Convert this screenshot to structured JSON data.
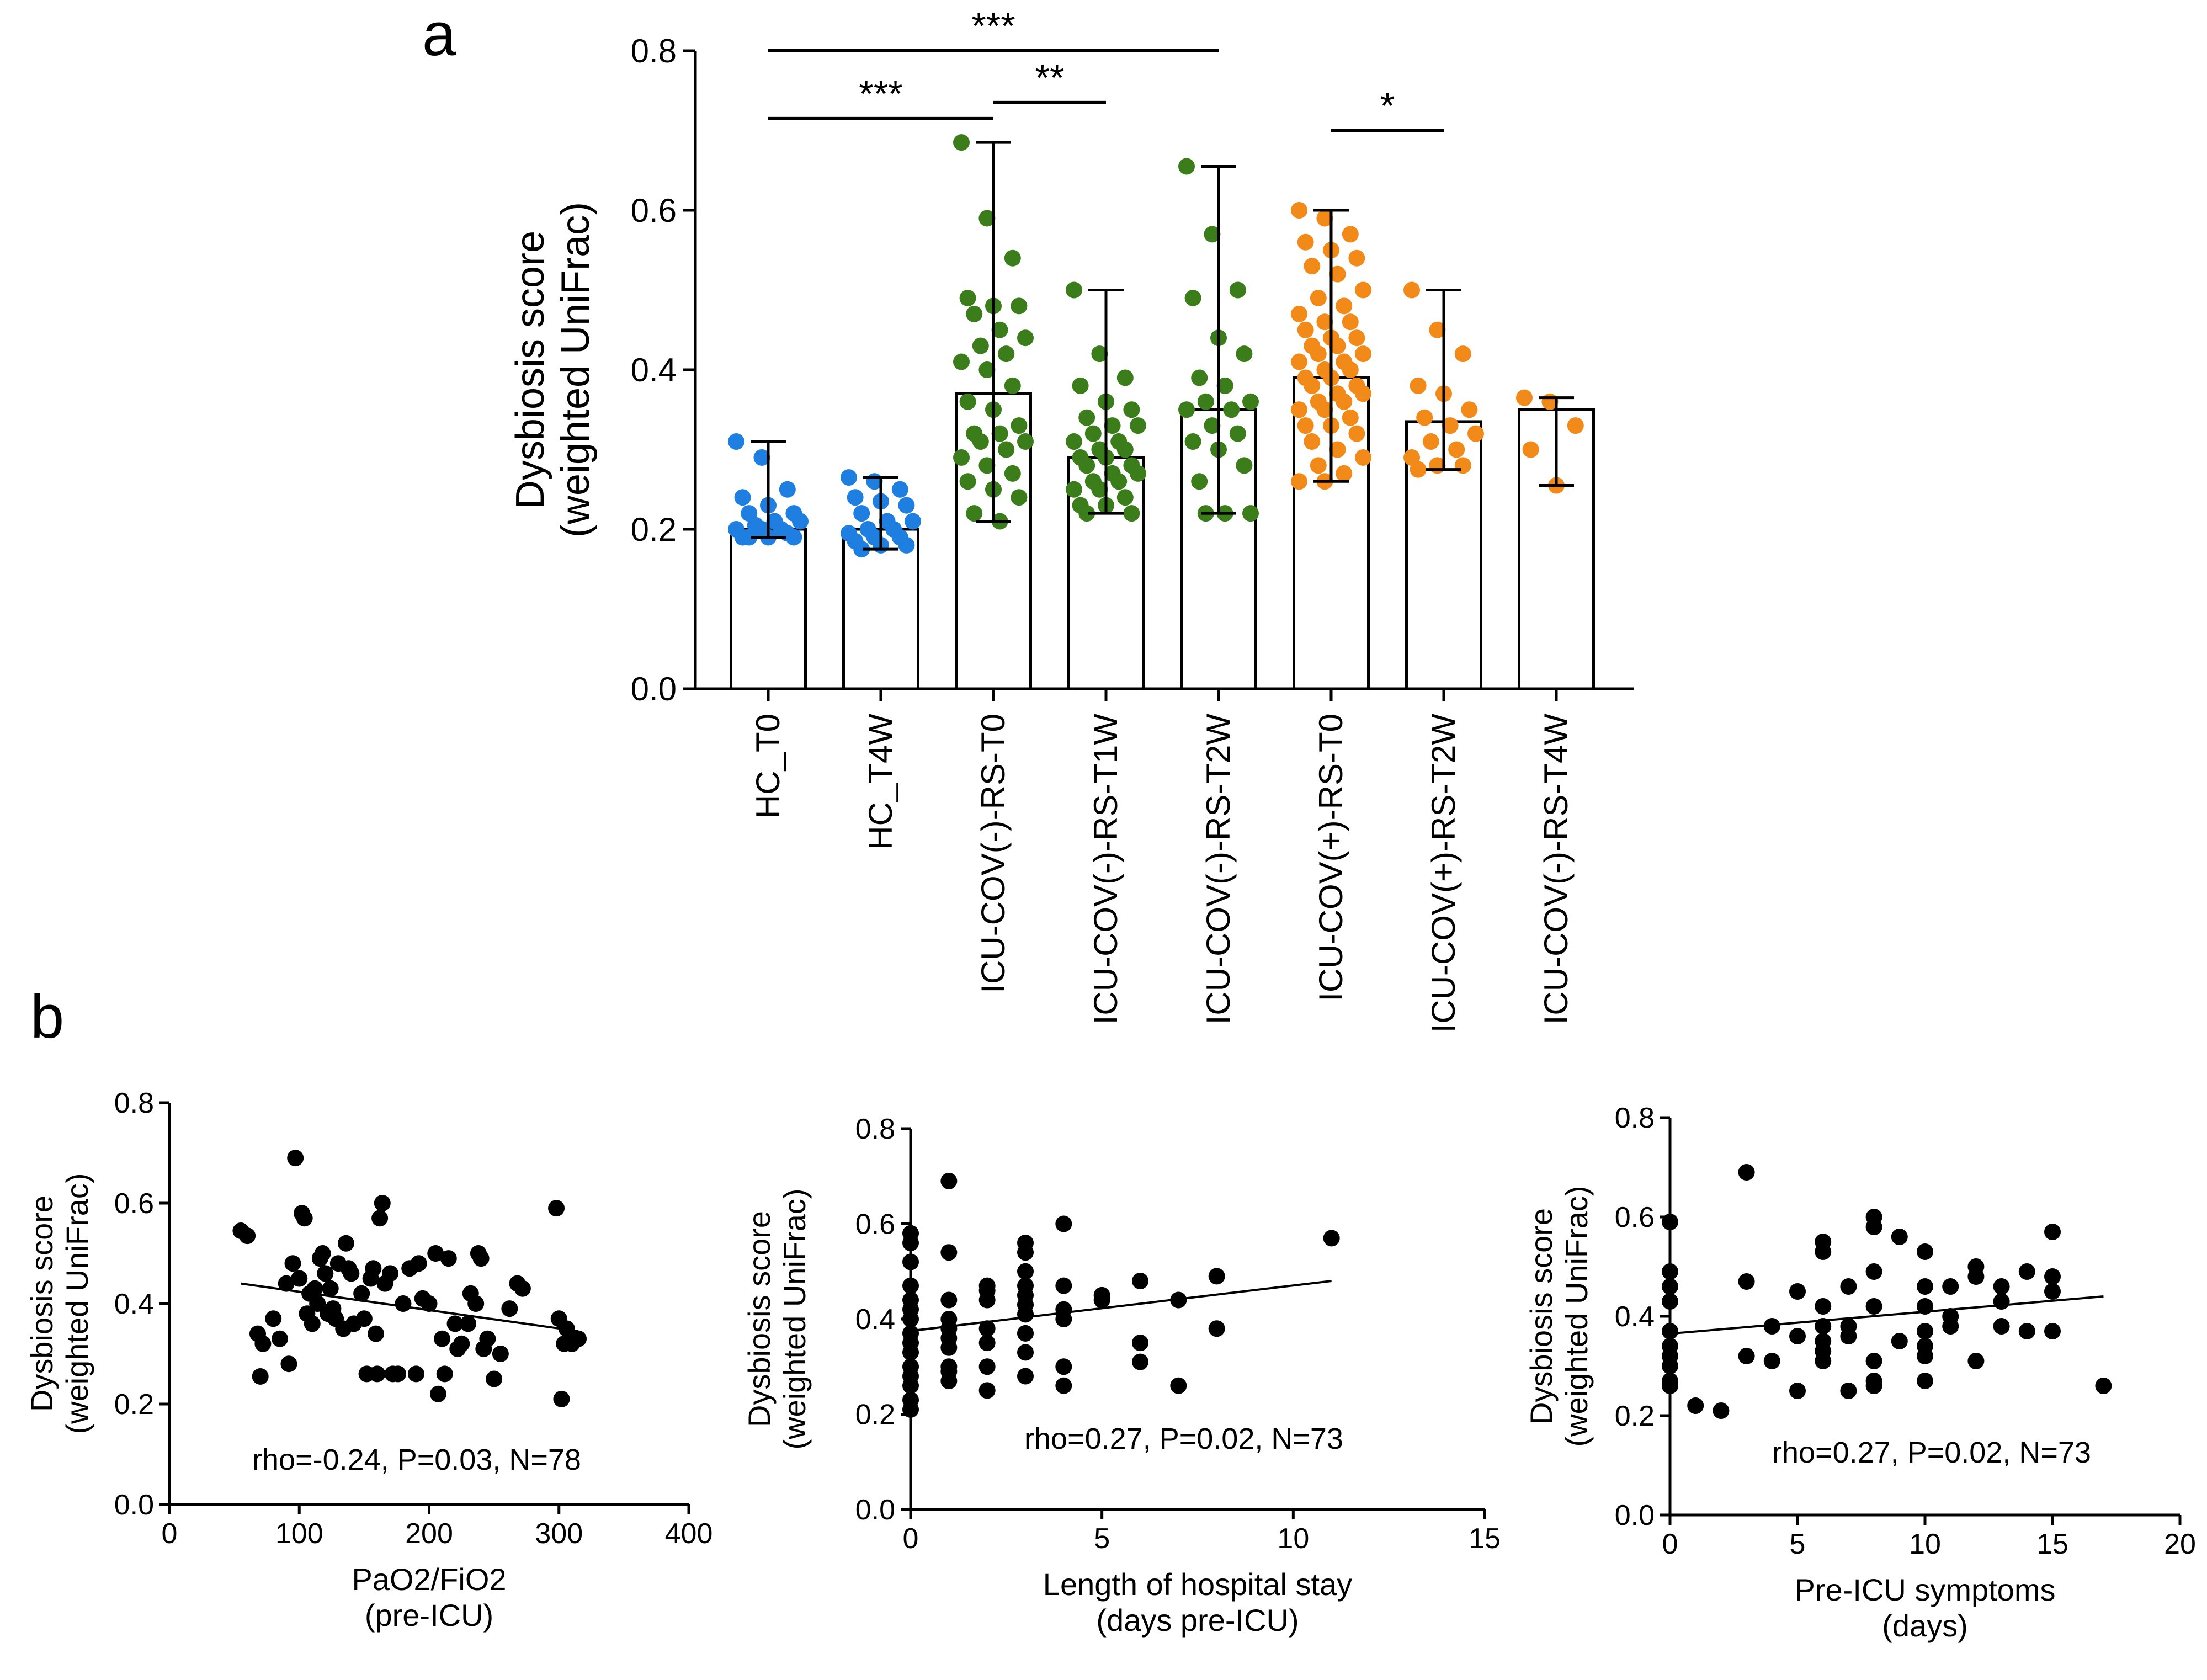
{
  "figure": {
    "panel_a_label": "a",
    "panel_b_label": "b"
  },
  "chart_data": [
    {
      "type": "bar",
      "panel": "a",
      "ylabel_line1": "Dysbiosis score",
      "ylabel_line2": "(weighted UniFrac)",
      "ylim": [
        0,
        0.8
      ],
      "yticks": [
        "0.0",
        "0.2",
        "0.4",
        "0.6",
        "0.8"
      ],
      "categories": [
        "HC_T0",
        "HC_T4W",
        "ICU-COV(-)-RS-T0",
        "ICU-COV(-)-RS-T1W",
        "ICU-COV(-)-RS-T2W",
        "ICU-COV(+)-RS-T0",
        "ICU-COV(+)-RS-T2W",
        "ICU-COV(-)-RS-T4W"
      ],
      "colors": [
        "#1f7fe0",
        "#1f7fe0",
        "#3a7d1a",
        "#3a7d1a",
        "#3a7d1a",
        "#f28a1a",
        "#f28a1a",
        "#f28a1a"
      ],
      "means": [
        0.2,
        0.2,
        0.37,
        0.29,
        0.35,
        0.39,
        0.335,
        0.35
      ],
      "mins": [
        0.19,
        0.175,
        0.21,
        0.22,
        0.22,
        0.26,
        0.275,
        0.255
      ],
      "maxs": [
        0.31,
        0.265,
        0.685,
        0.5,
        0.655,
        0.6,
        0.5,
        0.365
      ],
      "points": [
        [
          0.31,
          0.29,
          0.25,
          0.24,
          0.23,
          0.22,
          0.22,
          0.21,
          0.21,
          0.205,
          0.2,
          0.2,
          0.2,
          0.195,
          0.19,
          0.19,
          0.19,
          0.19
        ],
        [
          0.265,
          0.26,
          0.25,
          0.24,
          0.235,
          0.23,
          0.22,
          0.21,
          0.21,
          0.2,
          0.2,
          0.195,
          0.19,
          0.19,
          0.185,
          0.18,
          0.18,
          0.175
        ],
        [
          0.685,
          0.59,
          0.54,
          0.49,
          0.48,
          0.48,
          0.47,
          0.45,
          0.44,
          0.43,
          0.42,
          0.41,
          0.4,
          0.38,
          0.36,
          0.35,
          0.33,
          0.32,
          0.32,
          0.31,
          0.31,
          0.3,
          0.29,
          0.28,
          0.27,
          0.26,
          0.25,
          0.24,
          0.22,
          0.21
        ],
        [
          0.5,
          0.42,
          0.39,
          0.38,
          0.36,
          0.35,
          0.34,
          0.33,
          0.33,
          0.32,
          0.31,
          0.31,
          0.3,
          0.3,
          0.29,
          0.29,
          0.28,
          0.28,
          0.27,
          0.27,
          0.26,
          0.26,
          0.25,
          0.25,
          0.24,
          0.23,
          0.23,
          0.22,
          0.22
        ],
        [
          0.655,
          0.57,
          0.5,
          0.49,
          0.44,
          0.42,
          0.39,
          0.38,
          0.36,
          0.36,
          0.35,
          0.35,
          0.33,
          0.32,
          0.31,
          0.3,
          0.28,
          0.26,
          0.22,
          0.22,
          0.22
        ],
        [
          0.6,
          0.59,
          0.57,
          0.56,
          0.55,
          0.54,
          0.53,
          0.52,
          0.5,
          0.49,
          0.48,
          0.47,
          0.46,
          0.46,
          0.45,
          0.44,
          0.44,
          0.43,
          0.43,
          0.42,
          0.42,
          0.41,
          0.41,
          0.4,
          0.4,
          0.39,
          0.39,
          0.38,
          0.38,
          0.37,
          0.37,
          0.36,
          0.36,
          0.35,
          0.35,
          0.34,
          0.33,
          0.33,
          0.32,
          0.31,
          0.3,
          0.29,
          0.28,
          0.27,
          0.26,
          0.26
        ],
        [
          0.5,
          0.45,
          0.42,
          0.38,
          0.37,
          0.35,
          0.34,
          0.33,
          0.32,
          0.31,
          0.3,
          0.29,
          0.28,
          0.28,
          0.275
        ],
        [
          0.365,
          0.36,
          0.33,
          0.3,
          0.255
        ]
      ],
      "significance": [
        {
          "from": 0,
          "to": 4,
          "y": 0.8,
          "label": "***"
        },
        {
          "from": 0,
          "to": 2,
          "y": 0.715,
          "label": "***"
        },
        {
          "from": 2,
          "to": 3,
          "y": 0.735,
          "label": "**"
        },
        {
          "from": 5,
          "to": 6,
          "y": 0.7,
          "label": "*"
        }
      ]
    },
    {
      "type": "scatter",
      "panel": "b1",
      "xlabel_line1": "PaO2/FiO2",
      "xlabel_line2": "(pre-ICU)",
      "ylabel_line1": "Dysbiosis score",
      "ylabel_line2": "(weighted UniFrac)",
      "xlim": [
        0,
        400
      ],
      "ylim": [
        0,
        0.8
      ],
      "xticks": [
        "0",
        "100",
        "200",
        "300",
        "400"
      ],
      "yticks": [
        "0.0",
        "0.2",
        "0.4",
        "0.6",
        "0.8"
      ],
      "annotation": "rho=-0.24, P=0.03, N=78",
      "fit": {
        "x": [
          55,
          315
        ],
        "y": [
          0.44,
          0.345
        ]
      },
      "points": [
        [
          55,
          0.545
        ],
        [
          60,
          0.535
        ],
        [
          68,
          0.34
        ],
        [
          70,
          0.255
        ],
        [
          72,
          0.32
        ],
        [
          80,
          0.37
        ],
        [
          85,
          0.33
        ],
        [
          90,
          0.44
        ],
        [
          92,
          0.28
        ],
        [
          95,
          0.48
        ],
        [
          97,
          0.69
        ],
        [
          100,
          0.45
        ],
        [
          102,
          0.58
        ],
        [
          104,
          0.57
        ],
        [
          106,
          0.38
        ],
        [
          108,
          0.42
        ],
        [
          110,
          0.36
        ],
        [
          112,
          0.43
        ],
        [
          114,
          0.4
        ],
        [
          116,
          0.49
        ],
        [
          118,
          0.5
        ],
        [
          120,
          0.46
        ],
        [
          122,
          0.38
        ],
        [
          124,
          0.43
        ],
        [
          126,
          0.39
        ],
        [
          128,
          0.37
        ],
        [
          130,
          0.48
        ],
        [
          134,
          0.35
        ],
        [
          136,
          0.52
        ],
        [
          138,
          0.47
        ],
        [
          140,
          0.46
        ],
        [
          142,
          0.36
        ],
        [
          148,
          0.42
        ],
        [
          150,
          0.37
        ],
        [
          152,
          0.26
        ],
        [
          155,
          0.45
        ],
        [
          157,
          0.47
        ],
        [
          159,
          0.34
        ],
        [
          160,
          0.26
        ],
        [
          162,
          0.57
        ],
        [
          164,
          0.6
        ],
        [
          166,
          0.44
        ],
        [
          170,
          0.46
        ],
        [
          172,
          0.26
        ],
        [
          176,
          0.26
        ],
        [
          180,
          0.4
        ],
        [
          185,
          0.47
        ],
        [
          190,
          0.26
        ],
        [
          192,
          0.48
        ],
        [
          195,
          0.41
        ],
        [
          200,
          0.4
        ],
        [
          205,
          0.5
        ],
        [
          207,
          0.22
        ],
        [
          210,
          0.33
        ],
        [
          212,
          0.26
        ],
        [
          215,
          0.49
        ],
        [
          220,
          0.36
        ],
        [
          222,
          0.31
        ],
        [
          225,
          0.32
        ],
        [
          230,
          0.36
        ],
        [
          232,
          0.42
        ],
        [
          236,
          0.4
        ],
        [
          238,
          0.5
        ],
        [
          240,
          0.49
        ],
        [
          242,
          0.31
        ],
        [
          245,
          0.33
        ],
        [
          250,
          0.25
        ],
        [
          255,
          0.3
        ],
        [
          262,
          0.39
        ],
        [
          268,
          0.44
        ],
        [
          272,
          0.43
        ],
        [
          298,
          0.59
        ],
        [
          300,
          0.37
        ],
        [
          302,
          0.21
        ],
        [
          304,
          0.32
        ],
        [
          306,
          0.35
        ],
        [
          310,
          0.32
        ],
        [
          315,
          0.33
        ]
      ]
    },
    {
      "type": "scatter",
      "panel": "b2",
      "xlabel_line1": "Length of hospital stay",
      "xlabel_line2": "(days pre-ICU)",
      "ylabel_line1": "Dysbiosis score",
      "ylabel_line2": "(weighted UniFrac)",
      "xlim": [
        0,
        15
      ],
      "ylim": [
        0,
        0.8
      ],
      "xticks": [
        "0",
        "5",
        "10",
        "15"
      ],
      "yticks": [
        "0.0",
        "0.2",
        "0.4",
        "0.6",
        "0.8"
      ],
      "annotation": "rho=0.27, P=0.02, N=73",
      "fit": {
        "x": [
          0,
          11
        ],
        "y": [
          0.375,
          0.48
        ]
      },
      "points": [
        [
          0,
          0.58
        ],
        [
          0,
          0.56
        ],
        [
          0,
          0.52
        ],
        [
          0,
          0.47
        ],
        [
          0,
          0.44
        ],
        [
          0,
          0.42
        ],
        [
          0,
          0.4
        ],
        [
          0,
          0.37
        ],
        [
          0,
          0.35
        ],
        [
          0,
          0.33
        ],
        [
          0,
          0.3
        ],
        [
          0,
          0.28
        ],
        [
          0,
          0.26
        ],
        [
          0,
          0.23
        ],
        [
          0,
          0.21
        ],
        [
          1,
          0.69
        ],
        [
          1,
          0.54
        ],
        [
          1,
          0.44
        ],
        [
          1,
          0.4
        ],
        [
          1,
          0.38
        ],
        [
          1,
          0.36
        ],
        [
          1,
          0.34
        ],
        [
          1,
          0.3
        ],
        [
          1,
          0.29
        ],
        [
          1,
          0.27
        ],
        [
          2,
          0.47
        ],
        [
          2,
          0.46
        ],
        [
          2,
          0.44
        ],
        [
          2,
          0.38
        ],
        [
          2,
          0.35
        ],
        [
          2,
          0.3
        ],
        [
          2,
          0.25
        ],
        [
          3,
          0.56
        ],
        [
          3,
          0.54
        ],
        [
          3,
          0.5
        ],
        [
          3,
          0.47
        ],
        [
          3,
          0.45
        ],
        [
          3,
          0.43
        ],
        [
          3,
          0.41
        ],
        [
          3,
          0.37
        ],
        [
          3,
          0.33
        ],
        [
          3,
          0.28
        ],
        [
          4,
          0.6
        ],
        [
          4,
          0.47
        ],
        [
          4,
          0.42
        ],
        [
          4,
          0.4
        ],
        [
          4,
          0.3
        ],
        [
          4,
          0.26
        ],
        [
          5,
          0.45
        ],
        [
          5,
          0.44
        ],
        [
          6,
          0.48
        ],
        [
          6,
          0.35
        ],
        [
          6,
          0.31
        ],
        [
          7,
          0.44
        ],
        [
          7,
          0.26
        ],
        [
          8,
          0.49
        ],
        [
          8,
          0.38
        ],
        [
          11,
          0.57
        ]
      ]
    },
    {
      "type": "scatter",
      "panel": "b3",
      "xlabel_line1": "Pre-ICU symptoms",
      "xlabel_line2": "(days)",
      "ylabel_line1": "Dysbiosis score",
      "ylabel_line2": "(weighted UniFrac)",
      "xlim": [
        0,
        20
      ],
      "ylim": [
        0,
        0.8
      ],
      "xticks": [
        "0",
        "5",
        "10",
        "15",
        "20"
      ],
      "yticks": [
        "0.0",
        "0.2",
        "0.4",
        "0.6",
        "0.8"
      ],
      "annotation": "rho=0.27, P=0.02, N=73",
      "fit": {
        "x": [
          0,
          17
        ],
        "y": [
          0.365,
          0.44
        ]
      },
      "points": [
        [
          0,
          0.59
        ],
        [
          0,
          0.49
        ],
        [
          0,
          0.46
        ],
        [
          0,
          0.43
        ],
        [
          0,
          0.37
        ],
        [
          0,
          0.34
        ],
        [
          0,
          0.32
        ],
        [
          0,
          0.3
        ],
        [
          0,
          0.27
        ],
        [
          0,
          0.26
        ],
        [
          1,
          0.22
        ],
        [
          2,
          0.21
        ],
        [
          3,
          0.69
        ],
        [
          3,
          0.47
        ],
        [
          3,
          0.32
        ],
        [
          4,
          0.31
        ],
        [
          4,
          0.38
        ],
        [
          5,
          0.45
        ],
        [
          5,
          0.36
        ],
        [
          5,
          0.25
        ],
        [
          6,
          0.55
        ],
        [
          6,
          0.53
        ],
        [
          6,
          0.42
        ],
        [
          6,
          0.38
        ],
        [
          6,
          0.35
        ],
        [
          6,
          0.33
        ],
        [
          6,
          0.31
        ],
        [
          7,
          0.46
        ],
        [
          7,
          0.38
        ],
        [
          7,
          0.36
        ],
        [
          7,
          0.25
        ],
        [
          8,
          0.6
        ],
        [
          8,
          0.58
        ],
        [
          8,
          0.49
        ],
        [
          8,
          0.42
        ],
        [
          8,
          0.31
        ],
        [
          8,
          0.27
        ],
        [
          8,
          0.26
        ],
        [
          9,
          0.56
        ],
        [
          9,
          0.35
        ],
        [
          10,
          0.53
        ],
        [
          10,
          0.46
        ],
        [
          10,
          0.42
        ],
        [
          10,
          0.37
        ],
        [
          10,
          0.34
        ],
        [
          10,
          0.32
        ],
        [
          10,
          0.27
        ],
        [
          11,
          0.46
        ],
        [
          11,
          0.4
        ],
        [
          11,
          0.38
        ],
        [
          12,
          0.5
        ],
        [
          12,
          0.48
        ],
        [
          12,
          0.31
        ],
        [
          13,
          0.46
        ],
        [
          13,
          0.43
        ],
        [
          13,
          0.38
        ],
        [
          14,
          0.49
        ],
        [
          14,
          0.37
        ],
        [
          15,
          0.57
        ],
        [
          15,
          0.48
        ],
        [
          15,
          0.45
        ],
        [
          15,
          0.37
        ],
        [
          17,
          0.26
        ]
      ]
    }
  ]
}
